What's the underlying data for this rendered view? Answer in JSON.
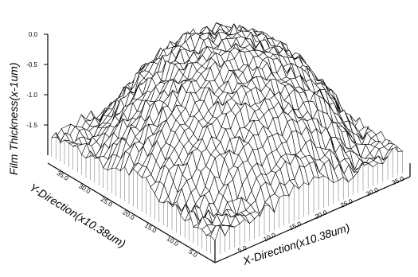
{
  "chart_data": {
    "type": "surface",
    "title": "",
    "zlabel": "Film Thickness(x-1um)",
    "xlabel": "X-Direction(x10.38um)",
    "ylabel": "Y-Direction(x10.38um)",
    "x_ticks": [
      "5.0",
      "10.0",
      "15.0",
      "20.0",
      "25.0",
      "30.0",
      "35.0"
    ],
    "y_ticks": [
      "5.0",
      "10.0",
      "15.0",
      "20.0",
      "25.0",
      "30.0",
      "35.0"
    ],
    "z_ticks": [
      "0.0",
      "-0.5",
      "-1.0",
      "-1.5"
    ],
    "xlim": [
      0,
      38
    ],
    "ylim": [
      0,
      38
    ],
    "zlim": [
      -2.0,
      0.0
    ],
    "surface": {
      "shape": "dome",
      "peak_value": 0.0,
      "peak_location": [
        19,
        19
      ],
      "edge_value": -1.6,
      "grid_size": [
        38,
        38
      ]
    },
    "colors": {
      "mesh": "#000000",
      "surface_fill": "#ffffff"
    }
  }
}
